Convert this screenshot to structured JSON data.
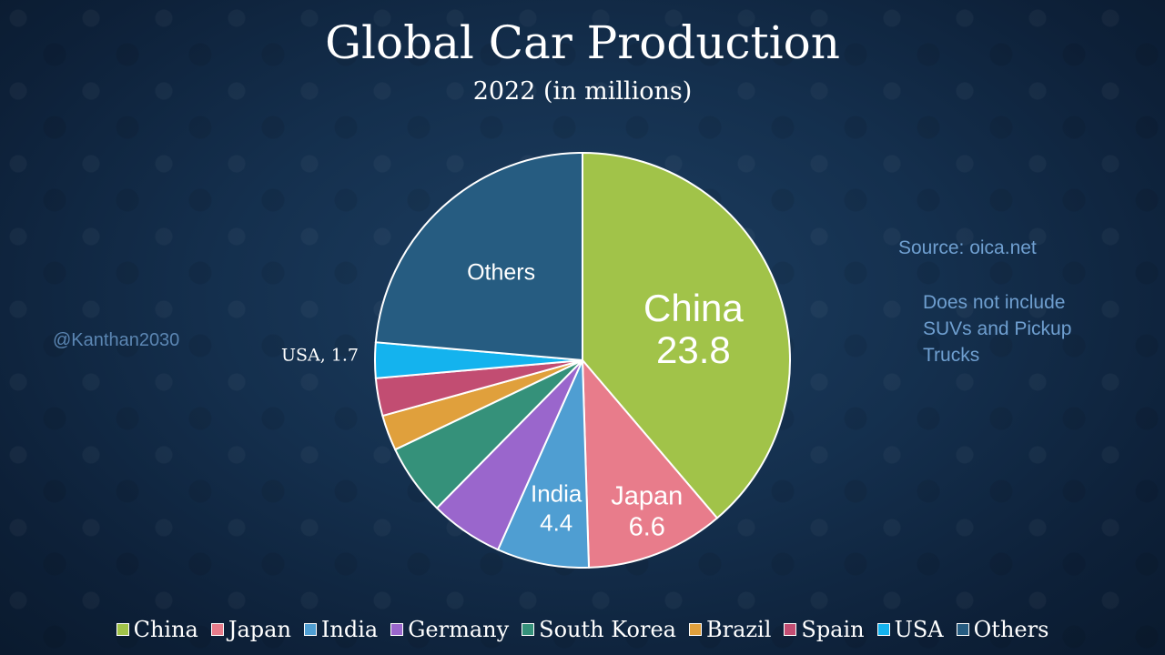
{
  "slide": {
    "title": "Global Car Production",
    "subtitle": "2022 (in millions)",
    "watermark": "@Kanthan2030",
    "source": "Source: oica.net",
    "note": "Does not include SUVs and Pickup Trucks"
  },
  "chart_data": {
    "type": "pie",
    "title": "Global Car Production",
    "subtitle": "2022 (in millions)",
    "categories": [
      "China",
      "Japan",
      "India",
      "Germany",
      "South Korea",
      "Brazil",
      "Spain",
      "USA",
      "Others"
    ],
    "values": [
      23.8,
      6.6,
      4.4,
      3.5,
      3.4,
      1.7,
      1.8,
      1.7,
      14.5
    ],
    "colors": [
      "#a1c349",
      "#e87c8b",
      "#4f9ed2",
      "#9a66cc",
      "#35917a",
      "#e0a03c",
      "#c24d72",
      "#14b3ee",
      "#265c81"
    ],
    "slice_labels": [
      {
        "lines": [
          "China",
          "23.8"
        ]
      },
      {
        "lines": [
          "Japan",
          "6.6"
        ]
      },
      {
        "lines": [
          "India",
          "4.4"
        ]
      },
      null,
      null,
      null,
      null,
      {
        "lines": [
          "USA, 1.7"
        ]
      },
      {
        "lines": [
          "Others"
        ]
      }
    ],
    "legend_position": "bottom",
    "start_angle": "12 o'clock",
    "direction": "clockwise"
  }
}
